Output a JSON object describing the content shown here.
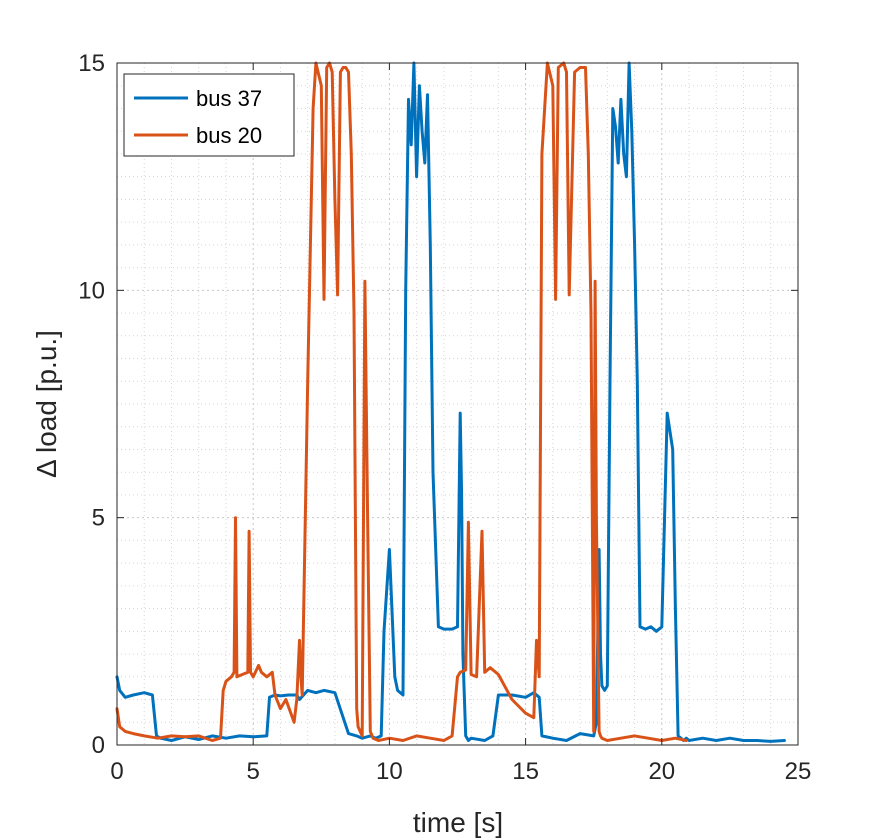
{
  "chart_data": {
    "type": "line",
    "title": "",
    "xlabel": "time [s]",
    "ylabel": "Δ load [p.u.]",
    "xlim": [
      0,
      25
    ],
    "ylim": [
      0,
      15
    ],
    "xticks": [
      0,
      5,
      10,
      15,
      20,
      25
    ],
    "yticks": [
      0,
      5,
      10,
      15
    ],
    "xtick_labels": [
      "0",
      "5",
      "10",
      "15",
      "20",
      "25"
    ],
    "ytick_labels": [
      "0",
      "5",
      "10",
      "15"
    ],
    "grid": true,
    "minor_grid": true,
    "legend_position": "top-left",
    "series": [
      {
        "name": "bus 37",
        "color": "#0072BD",
        "x": [
          0,
          0.1,
          0.3,
          0.6,
          1.0,
          1.3,
          1.45,
          1.6,
          2.0,
          2.5,
          3.0,
          3.5,
          4.0,
          4.5,
          5.0,
          5.5,
          5.6,
          5.8,
          6.0,
          6.3,
          6.6,
          6.7,
          7.0,
          7.3,
          7.6,
          8.0,
          8.5,
          8.8,
          9.0,
          9.3,
          9.5,
          9.7,
          9.8,
          10.0,
          10.2,
          10.3,
          10.5,
          10.6,
          10.7,
          10.8,
          10.9,
          11.0,
          11.1,
          11.2,
          11.3,
          11.4,
          11.5,
          11.6,
          11.8,
          12.0,
          12.3,
          12.5,
          12.6,
          12.65,
          12.7,
          12.8,
          12.9,
          13.0,
          13.5,
          13.8,
          14.0,
          14.5,
          15.0,
          15.3,
          15.5,
          15.6,
          16.0,
          16.5,
          17.0,
          17.5,
          17.6,
          17.7,
          17.75,
          17.8,
          17.9,
          18.0,
          18.1,
          18.2,
          18.3,
          18.4,
          18.5,
          18.6,
          18.7,
          18.8,
          18.9,
          19.0,
          19.1,
          19.2,
          19.4,
          19.6,
          19.8,
          20.0,
          20.2,
          20.4,
          20.5,
          20.6,
          20.7,
          20.8,
          20.9,
          21.0,
          21.5,
          22.0,
          22.5,
          23.0,
          23.5,
          24.0,
          24.5
        ],
        "values": [
          1.5,
          1.2,
          1.05,
          1.1,
          1.15,
          1.1,
          0.2,
          0.15,
          0.1,
          0.18,
          0.12,
          0.2,
          0.15,
          0.2,
          0.18,
          0.2,
          1.05,
          1.1,
          1.08,
          1.1,
          1.1,
          1.0,
          1.2,
          1.15,
          1.2,
          1.15,
          0.25,
          0.2,
          0.15,
          0.2,
          0.15,
          0.2,
          2.5,
          4.3,
          1.5,
          1.2,
          1.1,
          10.0,
          14.2,
          13.2,
          15.0,
          12.5,
          14.5,
          13.5,
          12.8,
          14.3,
          11.0,
          6.0,
          2.6,
          2.55,
          2.55,
          2.6,
          7.3,
          5.5,
          2.0,
          0.2,
          0.1,
          0.15,
          0.1,
          0.2,
          1.1,
          1.1,
          1.05,
          1.15,
          1.05,
          0.2,
          0.15,
          0.1,
          0.25,
          0.2,
          0.5,
          4.3,
          2.0,
          1.3,
          1.2,
          1.3,
          8.0,
          14.0,
          13.6,
          12.8,
          14.2,
          13.0,
          12.5,
          15.0,
          13.5,
          11.0,
          8.0,
          2.6,
          2.55,
          2.6,
          2.5,
          2.6,
          7.3,
          6.5,
          3.0,
          0.2,
          0.15,
          0.1,
          0.15,
          0.1,
          0.15,
          0.1,
          0.15,
          0.1,
          0.1,
          0.08,
          0.1
        ]
      },
      {
        "name": "bus 20",
        "color": "#D95319",
        "x": [
          0,
          0.1,
          0.3,
          0.6,
          1.0,
          1.5,
          2.0,
          2.5,
          3.0,
          3.5,
          3.8,
          3.9,
          4.0,
          4.2,
          4.3,
          4.35,
          4.4,
          4.6,
          4.8,
          4.85,
          4.9,
          5.0,
          5.2,
          5.3,
          5.5,
          5.7,
          5.8,
          6.0,
          6.2,
          6.5,
          6.6,
          6.7,
          6.75,
          6.8,
          7.0,
          7.2,
          7.3,
          7.5,
          7.6,
          7.7,
          7.8,
          7.9,
          8.0,
          8.1,
          8.2,
          8.3,
          8.4,
          8.5,
          8.6,
          8.7,
          8.8,
          8.85,
          9.0,
          9.1,
          9.2,
          9.3,
          9.4,
          9.6,
          10.0,
          10.5,
          11.0,
          11.5,
          12.0,
          12.3,
          12.5,
          12.6,
          12.8,
          12.9,
          13.0,
          13.2,
          13.4,
          13.5,
          13.7,
          14.0,
          14.5,
          15.0,
          15.3,
          15.4,
          15.5,
          15.6,
          15.8,
          16.0,
          16.1,
          16.2,
          16.4,
          16.5,
          16.6,
          16.8,
          17.0,
          17.2,
          17.3,
          17.4,
          17.5,
          17.55,
          17.6,
          17.7,
          17.75,
          17.8,
          18.0,
          18.5,
          19.0,
          19.5,
          20.0,
          20.5,
          20.9
        ],
        "values": [
          0.8,
          0.4,
          0.3,
          0.25,
          0.2,
          0.15,
          0.2,
          0.18,
          0.2,
          0.1,
          0.15,
          1.2,
          1.4,
          1.5,
          1.6,
          5.0,
          1.5,
          1.55,
          1.6,
          4.7,
          1.6,
          1.5,
          1.75,
          1.6,
          1.5,
          1.6,
          1.1,
          0.8,
          1.0,
          0.5,
          1.0,
          2.3,
          1.5,
          1.1,
          8.0,
          14.0,
          15.0,
          14.5,
          9.8,
          14.9,
          15.0,
          14.8,
          12.0,
          9.9,
          14.8,
          14.9,
          14.9,
          14.8,
          13.0,
          9.5,
          0.8,
          0.4,
          0.2,
          10.2,
          5.0,
          0.3,
          0.15,
          0.1,
          0.15,
          0.1,
          0.2,
          0.15,
          0.1,
          0.2,
          1.5,
          1.6,
          1.65,
          4.9,
          1.55,
          1.5,
          4.7,
          1.6,
          1.7,
          1.55,
          1.0,
          0.7,
          0.6,
          2.3,
          1.5,
          13.0,
          15.0,
          14.5,
          9.8,
          14.9,
          15.0,
          14.8,
          9.9,
          14.8,
          14.9,
          14.9,
          13.0,
          9.5,
          0.3,
          10.2,
          5.0,
          0.3,
          0.2,
          0.15,
          0.1,
          0.15,
          0.2,
          0.15,
          0.1,
          0.15,
          0.1
        ]
      }
    ]
  }
}
